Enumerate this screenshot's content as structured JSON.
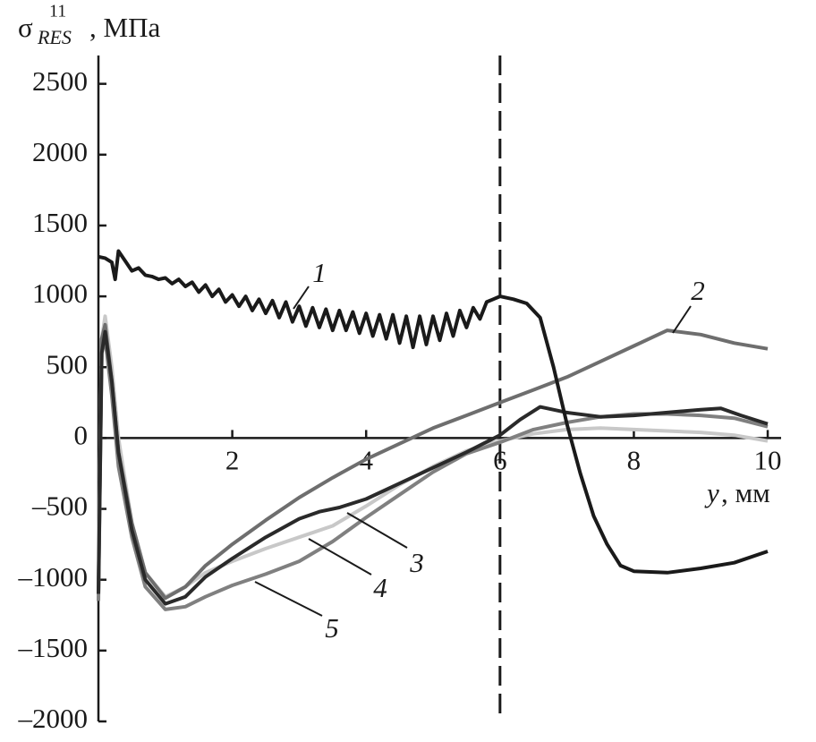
{
  "chart_data": {
    "type": "line",
    "ylabel": {
      "symbol": "σ",
      "superscript": "11",
      "subscript": "RES",
      "unit": ", МПа"
    },
    "xlabel": {
      "symbol": "y",
      "unit": ", мм"
    },
    "xlim": [
      0,
      10.2
    ],
    "ylim": [
      -2000,
      2700
    ],
    "xticks": [
      2,
      4,
      6,
      8,
      10
    ],
    "yticks": [
      {
        "value": -2000,
        "label": "–2000"
      },
      {
        "value": -1500,
        "label": "–1500"
      },
      {
        "value": -1000,
        "label": "–1000"
      },
      {
        "value": -500,
        "label": "–500"
      },
      0,
      500,
      1000,
      1500,
      2000,
      2500
    ],
    "vline": 6,
    "series": [
      {
        "name": "1",
        "color": "#1a1a1a",
        "x": [
          0,
          0.1,
          0.2,
          0.25,
          0.3,
          0.4,
          0.5,
          0.6,
          0.7,
          0.8,
          0.9,
          1.0,
          1.1,
          1.2,
          1.3,
          1.4,
          1.5,
          1.6,
          1.7,
          1.8,
          1.9,
          2.0,
          2.1,
          2.2,
          2.3,
          2.4,
          2.5,
          2.6,
          2.7,
          2.8,
          2.9,
          3.0,
          3.1,
          3.2,
          3.3,
          3.4,
          3.5,
          3.6,
          3.7,
          3.8,
          3.9,
          4.0,
          4.1,
          4.2,
          4.3,
          4.4,
          4.5,
          4.6,
          4.7,
          4.8,
          4.9,
          5.0,
          5.1,
          5.2,
          5.3,
          5.4,
          5.5,
          5.6,
          5.7,
          5.8,
          5.9,
          6.0,
          6.2,
          6.4,
          6.6,
          6.8,
          7.0,
          7.2,
          7.4,
          7.6,
          7.8,
          8.0,
          8.5,
          9.0,
          9.5,
          10.0
        ],
        "values": [
          1280,
          1270,
          1240,
          1120,
          1320,
          1250,
          1180,
          1200,
          1150,
          1140,
          1120,
          1130,
          1090,
          1120,
          1070,
          1100,
          1030,
          1080,
          1000,
          1050,
          960,
          1010,
          930,
          1000,
          900,
          980,
          880,
          970,
          850,
          960,
          820,
          930,
          790,
          920,
          780,
          910,
          760,
          900,
          760,
          890,
          740,
          880,
          720,
          870,
          700,
          870,
          670,
          860,
          640,
          860,
          660,
          860,
          690,
          880,
          720,
          900,
          780,
          920,
          840,
          960,
          980,
          1000,
          980,
          950,
          850,
          500,
          100,
          -250,
          -550,
          -750,
          -900,
          -940,
          -950,
          -920,
          -880,
          -800
        ]
      },
      {
        "name": "2",
        "color": "#6e6e6e",
        "x": [
          0,
          0.05,
          0.1,
          0.2,
          0.3,
          0.5,
          0.7,
          1.0,
          1.3,
          1.6,
          2,
          2.5,
          3,
          3.5,
          4,
          4.5,
          5,
          5.5,
          6,
          6.5,
          7,
          7.5,
          8,
          8.5,
          9,
          9.5,
          10
        ],
        "values": [
          -1100,
          700,
          800,
          400,
          -100,
          -600,
          -950,
          -1130,
          -1050,
          -900,
          -750,
          -580,
          -420,
          -280,
          -150,
          -40,
          70,
          160,
          250,
          340,
          430,
          540,
          650,
          760,
          730,
          670,
          630
        ]
      },
      {
        "name": "3",
        "color": "#2a2a2a",
        "x": [
          0,
          0.05,
          0.1,
          0.2,
          0.3,
          0.5,
          0.7,
          1.0,
          1.3,
          1.6,
          2,
          2.5,
          3,
          3.3,
          3.6,
          4,
          4.5,
          5,
          5.5,
          6,
          6.3,
          6.6,
          7,
          7.5,
          8,
          8.5,
          9,
          9.3,
          9.6,
          10
        ],
        "values": [
          -1100,
          600,
          750,
          400,
          -100,
          -650,
          -1000,
          -1170,
          -1120,
          -980,
          -850,
          -700,
          -570,
          -520,
          -490,
          -430,
          -320,
          -210,
          -100,
          20,
          130,
          220,
          180,
          150,
          160,
          180,
          200,
          210,
          160,
          100
        ]
      },
      {
        "name": "4",
        "color": "#c8c8c8",
        "x": [
          0,
          0.05,
          0.1,
          0.2,
          0.3,
          0.5,
          0.7,
          1.0,
          1.3,
          1.6,
          2,
          2.5,
          3,
          3.5,
          4,
          4.5,
          5,
          5.5,
          6,
          6.5,
          7,
          7.5,
          8,
          9,
          9.5,
          10
        ],
        "values": [
          -1000,
          700,
          860,
          500,
          0,
          -600,
          -950,
          -1120,
          -1050,
          -950,
          -870,
          -780,
          -700,
          -620,
          -480,
          -330,
          -200,
          -90,
          -20,
          30,
          60,
          70,
          60,
          40,
          20,
          -20
        ]
      },
      {
        "name": "5",
        "color": "#808080",
        "x": [
          0,
          0.05,
          0.1,
          0.2,
          0.3,
          0.5,
          0.7,
          1.0,
          1.3,
          1.6,
          2,
          2.5,
          3,
          3.5,
          4,
          4.5,
          5,
          5.5,
          6,
          6.5,
          7,
          7.5,
          8,
          8.5,
          9,
          9.5,
          10
        ],
        "values": [
          -1150,
          600,
          700,
          300,
          -200,
          -700,
          -1050,
          -1210,
          -1190,
          -1120,
          -1040,
          -960,
          -870,
          -730,
          -560,
          -400,
          -240,
          -110,
          -30,
          60,
          110,
          150,
          170,
          170,
          160,
          140,
          80
        ]
      }
    ]
  }
}
